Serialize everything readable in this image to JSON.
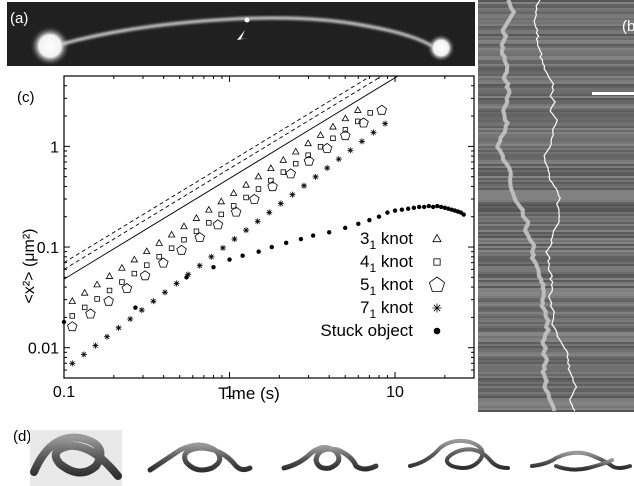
{
  "panels": {
    "a": "(a)",
    "b": "(b",
    "c": "(c)",
    "d": "(d)"
  },
  "chart_data": {
    "type": "scatter",
    "xscale": "log",
    "yscale": "log",
    "xlim": [
      0.1,
      30
    ],
    "ylim": [
      0.005,
      5
    ],
    "xlabel": "Time (s)",
    "ylabel": "<x²> (μm²)",
    "xticks": [
      {
        "v": 0.1,
        "label": "0.1"
      },
      {
        "v": 1,
        "label": "1"
      },
      {
        "v": 10,
        "label": "10"
      }
    ],
    "yticks": [
      {
        "v": 0.01,
        "label": "0.01"
      },
      {
        "v": 0.1,
        "label": "0.1"
      },
      {
        "v": 1,
        "label": "1"
      }
    ],
    "legend": [
      {
        "base": "3",
        "sub": "1",
        "rest": " knot",
        "marker": "triangle"
      },
      {
        "base": "4",
        "sub": "1",
        "rest": " knot",
        "marker": "square"
      },
      {
        "base": "5",
        "sub": "1",
        "rest": " knot",
        "marker": "pentagon"
      },
      {
        "base": "7",
        "sub": "1",
        "rest": " knot",
        "marker": "asterisk"
      },
      {
        "base": "Stuck object",
        "sub": "",
        "rest": "",
        "marker": "dot"
      }
    ],
    "legend_position": "lower-right",
    "series": [
      {
        "marker": "triangle",
        "a": 0.32,
        "b": 1.1,
        "xmax": 7,
        "step": 0.075
      },
      {
        "marker": "square",
        "a": 0.24,
        "b": 1.12,
        "xmax": 8,
        "step": 0.075
      },
      {
        "marker": "pentagon",
        "a": 0.2,
        "b": 1.15,
        "xmax": 10,
        "step": 0.11
      },
      {
        "marker": "asterisk",
        "a": 0.11,
        "b": 1.26,
        "xmax": 10,
        "step": 0.07
      },
      {
        "marker": "dot",
        "points": [
          [
            0.1,
            0.018
          ],
          [
            0.27,
            0.025
          ],
          [
            0.55,
            0.05
          ],
          [
            0.8,
            0.063
          ],
          [
            1,
            0.075
          ],
          [
            1.2,
            0.082
          ],
          [
            1.5,
            0.09
          ],
          [
            1.8,
            0.1
          ],
          [
            2.2,
            0.11
          ],
          [
            2.7,
            0.12
          ],
          [
            3.2,
            0.13
          ],
          [
            4,
            0.14
          ],
          [
            5,
            0.155
          ],
          [
            6,
            0.17
          ],
          [
            7,
            0.185
          ],
          [
            8,
            0.2
          ],
          [
            9,
            0.22
          ],
          [
            10,
            0.23
          ],
          [
            11,
            0.235
          ],
          [
            12,
            0.24
          ],
          [
            13,
            0.245
          ],
          [
            14,
            0.25
          ],
          [
            15,
            0.25
          ],
          [
            16,
            0.255
          ],
          [
            17,
            0.25
          ],
          [
            18,
            0.255
          ],
          [
            19,
            0.25
          ],
          [
            20,
            0.245
          ],
          [
            21,
            0.24
          ],
          [
            22,
            0.235
          ],
          [
            23,
            0.23
          ],
          [
            24,
            0.225
          ],
          [
            25,
            0.22
          ],
          [
            26,
            0.21
          ]
        ]
      }
    ],
    "fit_lines": [
      {
        "a": 0.48,
        "b": 1.0,
        "style": "solid"
      },
      {
        "a": 0.6,
        "b": 1.0,
        "style": "dashed"
      },
      {
        "a": 0.7,
        "b": 1.0,
        "style": "dashed"
      }
    ]
  }
}
